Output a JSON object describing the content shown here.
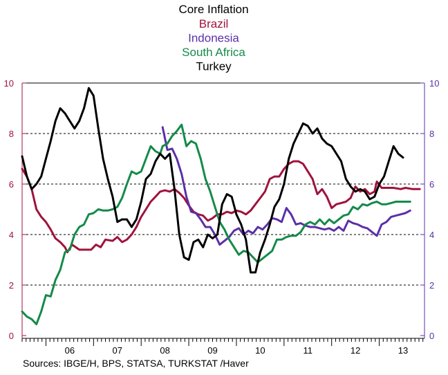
{
  "chart_data": {
    "type": "line",
    "title": "Core Inflation",
    "source": "Sources:   IBGE/H, BPS, STATSA, TURKSTAT /Haver",
    "x_labels": [
      "06",
      "07",
      "08",
      "09",
      "10",
      "11",
      "12",
      "13"
    ],
    "x_range": [
      2005.5,
      2013.95
    ],
    "ylim": [
      0,
      10
    ],
    "yticks": [
      0,
      2,
      4,
      6,
      8,
      10
    ],
    "grid": "horizontal dashed at 2, 4, 6, 8",
    "left_axis_color": "#a0123c",
    "right_axis_color": "#5b2fa8",
    "series": [
      {
        "name": "Brazil",
        "color": "#a0123c",
        "points": [
          [
            2005.5,
            6.6
          ],
          [
            2005.6,
            6.3
          ],
          [
            2005.7,
            5.8
          ],
          [
            2005.8,
            5.0
          ],
          [
            2005.9,
            4.7
          ],
          [
            2006.0,
            4.5
          ],
          [
            2006.1,
            4.2
          ],
          [
            2006.2,
            3.85
          ],
          [
            2006.3,
            3.7
          ],
          [
            2006.4,
            3.5
          ],
          [
            2006.45,
            3.3
          ],
          [
            2006.55,
            3.6
          ],
          [
            2006.7,
            3.4
          ],
          [
            2006.85,
            3.4
          ],
          [
            2006.95,
            3.4
          ],
          [
            2007.05,
            3.6
          ],
          [
            2007.15,
            3.5
          ],
          [
            2007.25,
            3.8
          ],
          [
            2007.4,
            3.75
          ],
          [
            2007.5,
            3.9
          ],
          [
            2007.6,
            3.7
          ],
          [
            2007.7,
            3.8
          ],
          [
            2007.8,
            4.0
          ],
          [
            2007.9,
            4.3
          ],
          [
            2008.0,
            4.7
          ],
          [
            2008.1,
            5.0
          ],
          [
            2008.2,
            5.3
          ],
          [
            2008.3,
            5.5
          ],
          [
            2008.4,
            5.7
          ],
          [
            2008.5,
            5.75
          ],
          [
            2008.6,
            5.7
          ],
          [
            2008.7,
            5.8
          ],
          [
            2008.8,
            5.65
          ],
          [
            2008.9,
            5.45
          ],
          [
            2009.0,
            5.15
          ],
          [
            2009.1,
            4.9
          ],
          [
            2009.2,
            4.8
          ],
          [
            2009.3,
            4.75
          ],
          [
            2009.4,
            4.55
          ],
          [
            2009.5,
            4.65
          ],
          [
            2009.6,
            4.8
          ],
          [
            2009.7,
            4.8
          ],
          [
            2009.8,
            4.9
          ],
          [
            2009.9,
            4.85
          ],
          [
            2010.0,
            4.95
          ],
          [
            2010.1,
            4.9
          ],
          [
            2010.2,
            4.8
          ],
          [
            2010.3,
            4.95
          ],
          [
            2010.4,
            5.2
          ],
          [
            2010.5,
            5.45
          ],
          [
            2010.6,
            5.7
          ],
          [
            2010.7,
            6.2
          ],
          [
            2010.8,
            6.3
          ],
          [
            2010.9,
            6.3
          ],
          [
            2011.0,
            6.6
          ],
          [
            2011.1,
            6.8
          ],
          [
            2011.2,
            6.9
          ],
          [
            2011.3,
            6.9
          ],
          [
            2011.4,
            6.8
          ],
          [
            2011.5,
            6.5
          ],
          [
            2011.6,
            6.2
          ],
          [
            2011.7,
            5.6
          ],
          [
            2011.8,
            5.8
          ],
          [
            2011.9,
            5.5
          ],
          [
            2012.0,
            5.05
          ],
          [
            2012.1,
            5.2
          ],
          [
            2012.2,
            5.25
          ],
          [
            2012.3,
            5.3
          ],
          [
            2012.4,
            5.45
          ],
          [
            2012.5,
            5.9
          ],
          [
            2012.6,
            5.7
          ],
          [
            2012.7,
            5.8
          ],
          [
            2012.8,
            5.6
          ],
          [
            2012.9,
            5.7
          ],
          [
            2012.95,
            6.1
          ],
          [
            2013.05,
            5.85
          ],
          [
            2013.15,
            5.85
          ],
          [
            2013.3,
            5.85
          ],
          [
            2013.45,
            5.8
          ],
          [
            2013.55,
            5.85
          ],
          [
            2013.7,
            5.8
          ],
          [
            2013.85,
            5.8
          ]
        ]
      },
      {
        "name": "Indonesia",
        "color": "#5b2fa8",
        "points": [
          [
            2008.45,
            8.25
          ],
          [
            2008.55,
            7.35
          ],
          [
            2008.65,
            7.4
          ],
          [
            2008.75,
            7.0
          ],
          [
            2008.85,
            6.4
          ],
          [
            2008.95,
            5.5
          ],
          [
            2009.05,
            4.9
          ],
          [
            2009.15,
            4.85
          ],
          [
            2009.25,
            4.6
          ],
          [
            2009.35,
            4.3
          ],
          [
            2009.45,
            4.3
          ],
          [
            2009.55,
            4.0
          ],
          [
            2009.65,
            3.6
          ],
          [
            2009.75,
            3.75
          ],
          [
            2009.85,
            3.9
          ],
          [
            2009.95,
            4.15
          ],
          [
            2010.05,
            4.25
          ],
          [
            2010.15,
            4.0
          ],
          [
            2010.25,
            4.15
          ],
          [
            2010.35,
            4.05
          ],
          [
            2010.45,
            4.3
          ],
          [
            2010.55,
            4.2
          ],
          [
            2010.65,
            4.4
          ],
          [
            2010.75,
            4.65
          ],
          [
            2010.85,
            4.6
          ],
          [
            2010.95,
            4.5
          ],
          [
            2011.05,
            5.05
          ],
          [
            2011.15,
            4.8
          ],
          [
            2011.25,
            4.4
          ],
          [
            2011.35,
            4.45
          ],
          [
            2011.45,
            4.35
          ],
          [
            2011.55,
            4.3
          ],
          [
            2011.65,
            4.3
          ],
          [
            2011.75,
            4.25
          ],
          [
            2011.85,
            4.2
          ],
          [
            2011.95,
            4.25
          ],
          [
            2012.05,
            4.15
          ],
          [
            2012.15,
            4.3
          ],
          [
            2012.25,
            4.15
          ],
          [
            2012.35,
            4.55
          ],
          [
            2012.45,
            4.45
          ],
          [
            2012.55,
            4.4
          ],
          [
            2012.65,
            4.3
          ],
          [
            2012.75,
            4.25
          ],
          [
            2012.85,
            4.1
          ],
          [
            2012.95,
            3.95
          ],
          [
            2013.05,
            4.4
          ],
          [
            2013.15,
            4.5
          ],
          [
            2013.25,
            4.7
          ],
          [
            2013.35,
            4.75
          ],
          [
            2013.45,
            4.8
          ],
          [
            2013.55,
            4.85
          ],
          [
            2013.65,
            4.95
          ]
        ]
      },
      {
        "name": "South Africa",
        "color": "#148a4a",
        "points": [
          [
            2005.5,
            0.95
          ],
          [
            2005.6,
            0.75
          ],
          [
            2005.7,
            0.65
          ],
          [
            2005.8,
            0.45
          ],
          [
            2005.9,
            0.95
          ],
          [
            2006.0,
            1.6
          ],
          [
            2006.1,
            1.55
          ],
          [
            2006.2,
            2.2
          ],
          [
            2006.3,
            2.6
          ],
          [
            2006.4,
            3.3
          ],
          [
            2006.5,
            3.4
          ],
          [
            2006.6,
            4.0
          ],
          [
            2006.7,
            4.3
          ],
          [
            2006.8,
            4.4
          ],
          [
            2006.9,
            4.8
          ],
          [
            2007.0,
            4.85
          ],
          [
            2007.1,
            5.0
          ],
          [
            2007.2,
            4.95
          ],
          [
            2007.3,
            4.95
          ],
          [
            2007.4,
            5.0
          ],
          [
            2007.5,
            5.1
          ],
          [
            2007.6,
            5.45
          ],
          [
            2007.7,
            6.0
          ],
          [
            2007.8,
            6.5
          ],
          [
            2007.9,
            6.4
          ],
          [
            2008.0,
            6.5
          ],
          [
            2008.1,
            7.0
          ],
          [
            2008.2,
            7.5
          ],
          [
            2008.3,
            7.3
          ],
          [
            2008.4,
            7.2
          ],
          [
            2008.45,
            7.5
          ],
          [
            2008.55,
            7.6
          ],
          [
            2008.65,
            7.9
          ],
          [
            2008.75,
            8.1
          ],
          [
            2008.85,
            8.35
          ],
          [
            2008.95,
            7.5
          ],
          [
            2009.05,
            7.7
          ],
          [
            2009.15,
            7.6
          ],
          [
            2009.25,
            7.0
          ],
          [
            2009.35,
            6.2
          ],
          [
            2009.45,
            5.7
          ],
          [
            2009.55,
            5.1
          ],
          [
            2009.65,
            4.5
          ],
          [
            2009.75,
            4.2
          ],
          [
            2009.85,
            3.8
          ],
          [
            2009.95,
            3.5
          ],
          [
            2010.05,
            3.2
          ],
          [
            2010.15,
            3.35
          ],
          [
            2010.25,
            3.3
          ],
          [
            2010.35,
            3.1
          ],
          [
            2010.45,
            2.9
          ],
          [
            2010.55,
            3.05
          ],
          [
            2010.65,
            3.2
          ],
          [
            2010.75,
            3.35
          ],
          [
            2010.85,
            3.8
          ],
          [
            2010.95,
            3.8
          ],
          [
            2011.05,
            3.9
          ],
          [
            2011.15,
            3.95
          ],
          [
            2011.25,
            3.95
          ],
          [
            2011.35,
            4.1
          ],
          [
            2011.45,
            4.4
          ],
          [
            2011.55,
            4.5
          ],
          [
            2011.65,
            4.4
          ],
          [
            2011.75,
            4.6
          ],
          [
            2011.85,
            4.4
          ],
          [
            2011.95,
            4.6
          ],
          [
            2012.05,
            4.45
          ],
          [
            2012.15,
            4.6
          ],
          [
            2012.25,
            4.75
          ],
          [
            2012.35,
            4.8
          ],
          [
            2012.45,
            5.1
          ],
          [
            2012.55,
            5.0
          ],
          [
            2012.65,
            5.2
          ],
          [
            2012.75,
            5.15
          ],
          [
            2012.85,
            5.25
          ],
          [
            2012.95,
            5.3
          ],
          [
            2013.05,
            5.2
          ],
          [
            2013.15,
            5.2
          ],
          [
            2013.25,
            5.25
          ],
          [
            2013.35,
            5.3
          ],
          [
            2013.5,
            5.3
          ],
          [
            2013.65,
            5.3
          ]
        ]
      },
      {
        "name": "Turkey",
        "color": "#000000",
        "points": [
          [
            2005.5,
            7.1
          ],
          [
            2005.6,
            6.3
          ],
          [
            2005.7,
            5.8
          ],
          [
            2005.8,
            6.0
          ],
          [
            2005.9,
            6.3
          ],
          [
            2006.0,
            7.0
          ],
          [
            2006.1,
            7.7
          ],
          [
            2006.2,
            8.5
          ],
          [
            2006.3,
            9.0
          ],
          [
            2006.4,
            8.8
          ],
          [
            2006.5,
            8.5
          ],
          [
            2006.6,
            8.2
          ],
          [
            2006.7,
            8.5
          ],
          [
            2006.8,
            9.0
          ],
          [
            2006.9,
            9.8
          ],
          [
            2007.0,
            9.5
          ],
          [
            2007.1,
            8.2
          ],
          [
            2007.2,
            7.0
          ],
          [
            2007.3,
            6.2
          ],
          [
            2007.4,
            5.5
          ],
          [
            2007.5,
            4.5
          ],
          [
            2007.6,
            4.6
          ],
          [
            2007.7,
            4.6
          ],
          [
            2007.8,
            4.3
          ],
          [
            2007.9,
            4.6
          ],
          [
            2008.0,
            5.3
          ],
          [
            2008.1,
            6.2
          ],
          [
            2008.2,
            6.4
          ],
          [
            2008.3,
            6.9
          ],
          [
            2008.4,
            7.2
          ],
          [
            2008.5,
            7.0
          ],
          [
            2008.6,
            7.2
          ],
          [
            2008.7,
            5.8
          ],
          [
            2008.8,
            4.0
          ],
          [
            2008.9,
            3.1
          ],
          [
            2009.0,
            3.0
          ],
          [
            2009.1,
            3.7
          ],
          [
            2009.2,
            3.8
          ],
          [
            2009.3,
            3.5
          ],
          [
            2009.4,
            4.0
          ],
          [
            2009.5,
            3.85
          ],
          [
            2009.6,
            4.0
          ],
          [
            2009.7,
            5.2
          ],
          [
            2009.8,
            5.6
          ],
          [
            2009.9,
            5.5
          ],
          [
            2010.0,
            4.8
          ],
          [
            2010.1,
            4.4
          ],
          [
            2010.2,
            3.8
          ],
          [
            2010.3,
            2.5
          ],
          [
            2010.4,
            2.5
          ],
          [
            2010.5,
            3.3
          ],
          [
            2010.6,
            3.8
          ],
          [
            2010.7,
            4.4
          ],
          [
            2010.8,
            5.1
          ],
          [
            2010.9,
            5.4
          ],
          [
            2011.0,
            6.0
          ],
          [
            2011.1,
            7.0
          ],
          [
            2011.2,
            7.6
          ],
          [
            2011.3,
            8.0
          ],
          [
            2011.4,
            8.4
          ],
          [
            2011.5,
            8.3
          ],
          [
            2011.6,
            8.0
          ],
          [
            2011.7,
            8.2
          ],
          [
            2011.8,
            7.8
          ],
          [
            2011.9,
            7.6
          ],
          [
            2012.0,
            7.5
          ],
          [
            2012.1,
            7.2
          ],
          [
            2012.2,
            6.9
          ],
          [
            2012.3,
            6.2
          ],
          [
            2012.4,
            5.9
          ],
          [
            2012.5,
            5.7
          ],
          [
            2012.6,
            5.8
          ],
          [
            2012.7,
            5.7
          ],
          [
            2012.8,
            5.4
          ],
          [
            2012.9,
            5.5
          ],
          [
            2013.0,
            6.0
          ],
          [
            2013.1,
            6.3
          ],
          [
            2013.2,
            6.9
          ],
          [
            2013.3,
            7.5
          ],
          [
            2013.4,
            7.2
          ],
          [
            2013.5,
            7.05
          ]
        ]
      }
    ]
  }
}
